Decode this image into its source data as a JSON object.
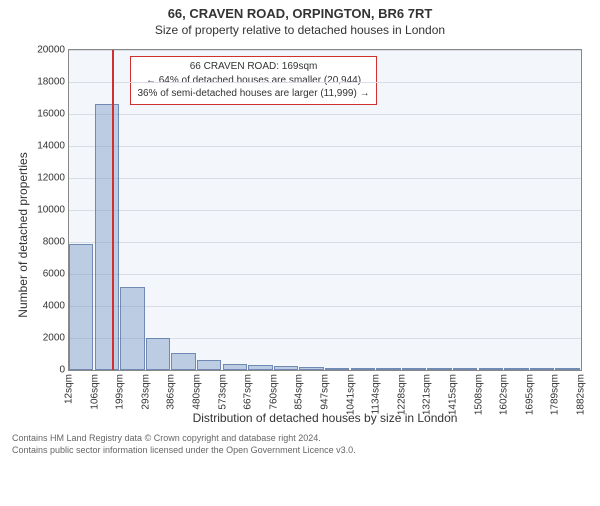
{
  "titles": {
    "main": "66, CRAVEN ROAD, ORPINGTON, BR6 7RT",
    "sub": "Size of property relative to detached houses in London"
  },
  "chart": {
    "type": "histogram",
    "background_color": "#f3f6fb",
    "grid_color": "#d8dde6",
    "bar_fill": "rgba(120,152,198,0.45)",
    "bar_border": "rgba(80,110,160,0.7)",
    "marker_color": "#d03030",
    "y_label": "Number of detached properties",
    "x_label": "Distribution of detached houses by size in London",
    "y_max": 20000,
    "y_tick_step": 2000,
    "y_ticks": [
      0,
      2000,
      4000,
      6000,
      8000,
      10000,
      12000,
      14000,
      16000,
      18000,
      20000
    ],
    "x_ticks": [
      "12sqm",
      "106sqm",
      "199sqm",
      "293sqm",
      "386sqm",
      "480sqm",
      "573sqm",
      "667sqm",
      "760sqm",
      "854sqm",
      "947sqm",
      "1041sqm",
      "1134sqm",
      "1228sqm",
      "1321sqm",
      "1415sqm",
      "1508sqm",
      "1602sqm",
      "1695sqm",
      "1789sqm",
      "1882sqm"
    ],
    "bars": [
      7900,
      16600,
      5200,
      2000,
      1050,
      620,
      400,
      300,
      220,
      180,
      140,
      120,
      100,
      80,
      70,
      60,
      50,
      40,
      35,
      30
    ],
    "marker_sqm": 169,
    "x_min_sqm": 12,
    "x_max_sqm": 1882,
    "annotation": {
      "line1": "66 CRAVEN ROAD: 169sqm",
      "line2": "← 64% of detached houses are smaller (20,944)",
      "line3": "36% of semi-detached houses are larger (11,999) →"
    }
  },
  "footer": {
    "line1": "Contains HM Land Registry data © Crown copyright and database right 2024.",
    "line2": "Contains public sector information licensed under the Open Government Licence v3.0."
  }
}
